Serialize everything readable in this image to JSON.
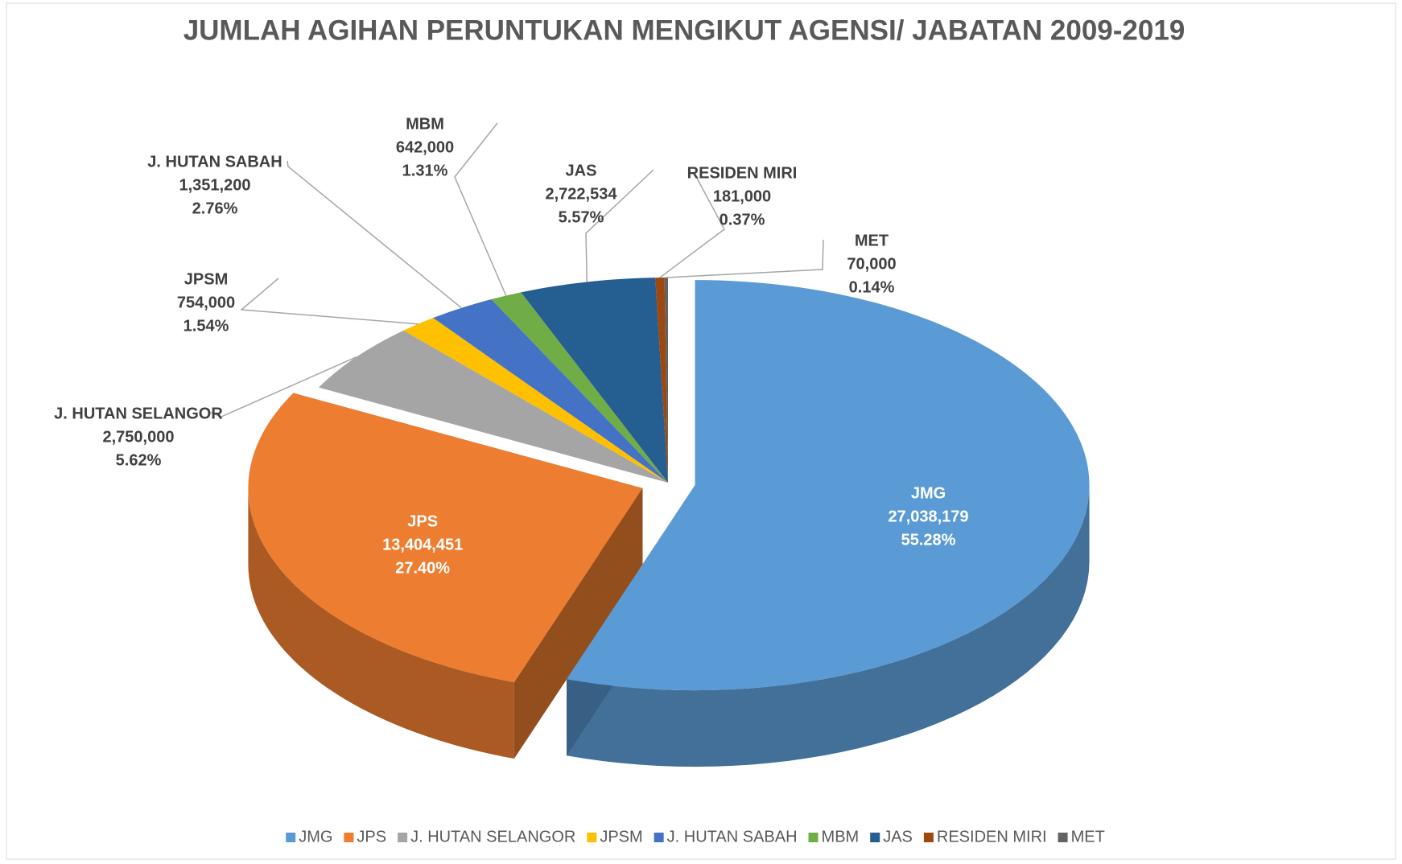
{
  "chart_data": {
    "type": "pie",
    "title": "JUMLAH AGIHAN PERUNTUKAN MENGIKUT AGENSI/ JABATAN 2009-2019",
    "categories": [
      "JMG",
      "JPS",
      "J. HUTAN SELANGOR",
      "JPSM",
      "J. HUTAN SABAH",
      "MBM",
      "JAS",
      "RESIDEN MIRI",
      "MET"
    ],
    "values": [
      27038179,
      13404451,
      2750000,
      754000,
      1351200,
      642000,
      2722534,
      181000,
      70000
    ],
    "value_labels": [
      "27,038,179",
      "13,404,451",
      "2,750,000",
      "754,000",
      "1,351,200",
      "642,000",
      "2,722,534",
      "181,000",
      "70,000"
    ],
    "percents": [
      55.28,
      27.4,
      5.62,
      1.54,
      2.76,
      1.31,
      5.57,
      0.37,
      0.14
    ],
    "percent_labels": [
      "55.28%",
      "27.40%",
      "5.62%",
      "1.54%",
      "2.76%",
      "1.31%",
      "5.57%",
      "0.37%",
      "0.14%"
    ],
    "colors": [
      "#5b9bd5",
      "#ed7d31",
      "#a5a5a5",
      "#ffc000",
      "#4472c4",
      "#70ad47",
      "#255e91",
      "#9e480e",
      "#636363"
    ],
    "legend": "bottom"
  }
}
